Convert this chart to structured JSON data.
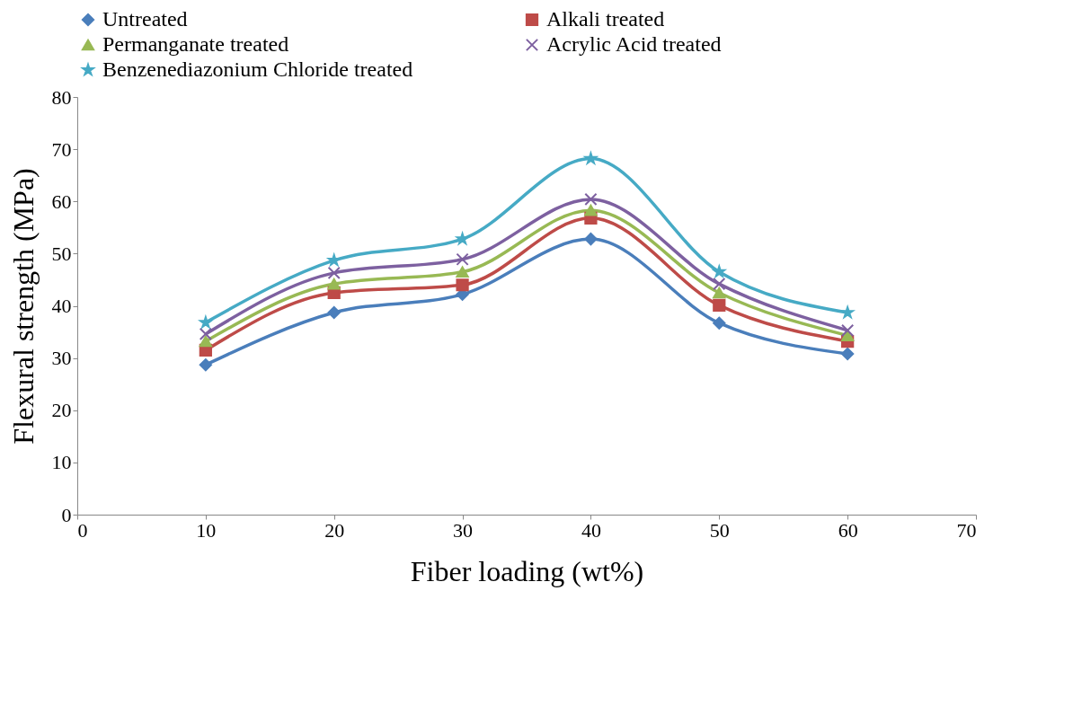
{
  "chart_data": {
    "type": "line",
    "xlabel": "Fiber loading (wt%)",
    "ylabel": "Flexural strength (MPa)",
    "x": [
      10,
      20,
      30,
      40,
      50,
      60
    ],
    "series": [
      {
        "name": "Untreated",
        "color": "#4a7ebb",
        "marker": "diamond",
        "values": [
          28.7,
          38.7,
          42.2,
          52.8,
          36.7,
          30.8
        ]
      },
      {
        "name": "Alkali treated",
        "color": "#be4b48",
        "marker": "square",
        "values": [
          31.5,
          42.5,
          44,
          56.8,
          40.1,
          33.2
        ]
      },
      {
        "name": "Permanganate treated",
        "color": "#98b954",
        "marker": "triangle",
        "values": [
          33.2,
          44.2,
          46.5,
          58.3,
          42.5,
          34.3
        ]
      },
      {
        "name": "Acrylic Acid treated",
        "color": "#7d60a0",
        "marker": "cross",
        "values": [
          34.6,
          46.3,
          48.9,
          60.4,
          44.2,
          35.3
        ]
      },
      {
        "name": "Benzenediazonium Chloride treated",
        "color": "#46aac5",
        "marker": "star",
        "values": [
          36.8,
          48.7,
          52.8,
          68.2,
          46.5,
          38.7
        ]
      }
    ],
    "xlim": [
      0,
      70
    ],
    "xticks": [
      0,
      10,
      20,
      30,
      40,
      50,
      60,
      70
    ],
    "ylim": [
      0,
      80
    ],
    "yticks": [
      0,
      10,
      20,
      30,
      40,
      50,
      60,
      70,
      80
    ],
    "grid": false,
    "legend": "top",
    "line_style": "solid"
  }
}
